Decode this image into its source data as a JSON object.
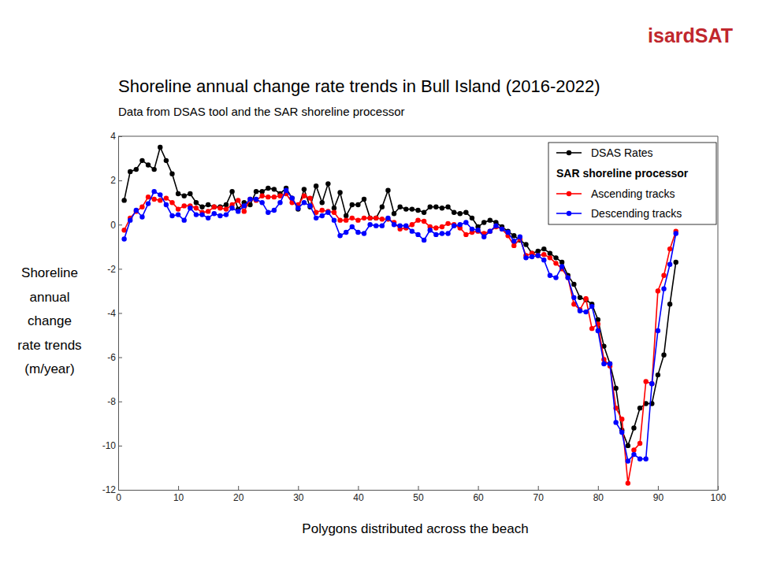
{
  "chart_data": {
    "type": "line",
    "logo": "isardSAT",
    "title": "Shoreline annual change rate trends in Bull Island (2016-2022)",
    "subtitle": "Data from DSAS tool and the SAR shoreline processor",
    "x_label": "Polygons distributed across the beach",
    "y_label": [
      "Shoreline",
      "annual",
      "change",
      "rate trends",
      "(m/year)"
    ],
    "legend_subtitle": "SAR shoreline processor",
    "legend": "upper right",
    "grid": false,
    "marker": "circle",
    "line_style": "solid",
    "xlim": [
      0,
      100
    ],
    "xticks": [
      0,
      10,
      20,
      30,
      40,
      50,
      60,
      70,
      80,
      90,
      100
    ],
    "ylim": [
      -12,
      4
    ],
    "yticks": [
      -12,
      -10,
      -8,
      -6,
      -4,
      -2,
      0,
      2,
      4
    ],
    "x": [
      1,
      2,
      3,
      4,
      5,
      6,
      7,
      8,
      9,
      10,
      11,
      12,
      13,
      14,
      15,
      16,
      17,
      18,
      19,
      20,
      21,
      22,
      23,
      24,
      25,
      26,
      27,
      28,
      29,
      30,
      31,
      32,
      33,
      34,
      35,
      36,
      37,
      38,
      39,
      40,
      41,
      42,
      43,
      44,
      45,
      46,
      47,
      48,
      49,
      50,
      51,
      52,
      53,
      54,
      55,
      56,
      57,
      58,
      59,
      60,
      61,
      62,
      63,
      64,
      65,
      66,
      67,
      68,
      69,
      70,
      71,
      72,
      73,
      74,
      75,
      76,
      77,
      78,
      79,
      80,
      81,
      82,
      83,
      84,
      85,
      86,
      87,
      88,
      89,
      90,
      91,
      92,
      93
    ],
    "series": [
      {
        "name": "DSAS Rates",
        "color": "#000000",
        "values": [
          1.1,
          2.4,
          2.5,
          2.9,
          2.7,
          2.5,
          3.5,
          2.9,
          2.3,
          1.4,
          1.3,
          1.4,
          1.0,
          0.8,
          0.9,
          0.8,
          0.8,
          0.9,
          1.5,
          0.7,
          1.0,
          0.9,
          1.5,
          1.5,
          1.65,
          1.6,
          1.4,
          1.65,
          1.2,
          0.7,
          1.6,
          0.8,
          1.75,
          1.0,
          1.85,
          0.75,
          1.45,
          0.4,
          0.9,
          0.9,
          1.15,
          0.3,
          0.3,
          0.8,
          1.55,
          0.5,
          0.8,
          0.7,
          0.7,
          0.65,
          0.55,
          0.8,
          0.8,
          0.75,
          0.8,
          0.55,
          0.5,
          0.55,
          0.3,
          -0.1,
          0.1,
          0.2,
          0.1,
          -0.1,
          -0.3,
          -0.5,
          -0.7,
          -0.9,
          -1.3,
          -1.2,
          -1.1,
          -1.3,
          -1.5,
          -1.7,
          -2.3,
          -2.7,
          -3.3,
          -3.4,
          -3.6,
          -4.3,
          -5.5,
          -6.3,
          -7.4,
          -9.3,
          -10.0,
          -9.2,
          -8.3,
          -8.1,
          -8.1,
          -6.8,
          -5.9,
          -3.6,
          -1.7
        ]
      },
      {
        "name": "Ascending tracks",
        "color": "#ff0000",
        "values": [
          -0.25,
          0.3,
          0.6,
          0.8,
          1.25,
          1.15,
          1.1,
          1.2,
          1.0,
          0.7,
          0.85,
          0.85,
          0.75,
          0.55,
          0.6,
          0.8,
          0.75,
          0.7,
          0.9,
          1.1,
          0.6,
          1.15,
          1.1,
          1.3,
          1.25,
          1.25,
          1.3,
          1.4,
          1.0,
          0.9,
          1.3,
          1.2,
          0.55,
          0.65,
          0.6,
          0.55,
          0.2,
          0.2,
          0.3,
          0.2,
          0.3,
          0.3,
          0.3,
          0.25,
          0.25,
          0.1,
          -0.2,
          -0.15,
          0.0,
          0.2,
          0.15,
          -0.1,
          -0.15,
          -0.1,
          0.05,
          0.0,
          -0.15,
          -0.45,
          -0.35,
          -0.3,
          -0.4,
          -0.3,
          -0.1,
          -0.2,
          -0.5,
          -0.95,
          -0.65,
          -1.4,
          -1.3,
          -1.4,
          -1.35,
          -1.5,
          -1.75,
          -2.0,
          -2.4,
          -3.6,
          -3.85,
          -3.35,
          -4.7,
          -4.5,
          -6.1,
          -6.4,
          -8.3,
          -8.8,
          -11.7,
          -10.2,
          -9.9,
          -7.1,
          -7.2,
          -3.0,
          -2.3,
          -1.1,
          -0.3
        ]
      },
      {
        "name": "Descending tracks",
        "color": "#0000ff",
        "values": [
          -0.65,
          0.2,
          0.65,
          0.35,
          0.95,
          1.5,
          1.35,
          0.9,
          0.4,
          0.45,
          0.2,
          0.75,
          0.45,
          0.45,
          0.3,
          0.5,
          0.4,
          0.45,
          0.75,
          0.6,
          0.85,
          1.15,
          1.15,
          1.0,
          0.55,
          0.65,
          1.0,
          1.55,
          1.2,
          0.75,
          1.0,
          0.85,
          0.3,
          0.4,
          0.55,
          0.2,
          -0.5,
          -0.35,
          -0.1,
          -0.35,
          -0.4,
          0.0,
          -0.05,
          -0.05,
          0.3,
          0.0,
          -0.05,
          -0.05,
          -0.3,
          -0.45,
          -0.7,
          -0.25,
          -0.45,
          -0.4,
          -0.4,
          -0.05,
          0.0,
          0.1,
          -0.2,
          -0.25,
          -0.55,
          -0.3,
          -0.05,
          -0.2,
          -0.35,
          -0.75,
          -0.55,
          -1.5,
          -1.45,
          -1.4,
          -1.6,
          -2.3,
          -2.4,
          -1.9,
          -2.4,
          -3.3,
          -3.9,
          -3.95,
          -3.7,
          -4.8,
          -6.3,
          -6.3,
          -8.95,
          -9.4,
          -10.7,
          -10.4,
          -10.6,
          -10.6,
          -7.2,
          -4.8,
          -2.9,
          -1.8,
          -0.4
        ]
      }
    ]
  }
}
